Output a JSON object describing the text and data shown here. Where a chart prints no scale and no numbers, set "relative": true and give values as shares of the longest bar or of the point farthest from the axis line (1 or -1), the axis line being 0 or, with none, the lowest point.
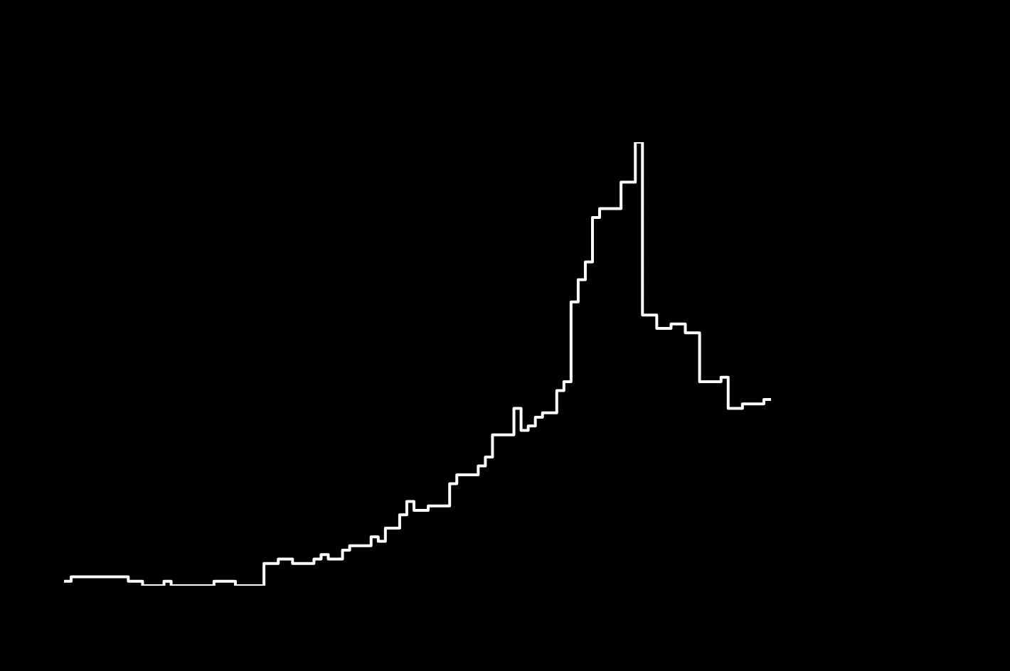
{
  "chart_data": {
    "type": "step",
    "relative": true,
    "color": "#ffffff",
    "categories": [
      null,
      null,
      null,
      null,
      null,
      null,
      null,
      null,
      null,
      null,
      null,
      null,
      null,
      null,
      null,
      null,
      null,
      null,
      null,
      null,
      null,
      null,
      null,
      null,
      null,
      null,
      null,
      null,
      null,
      null,
      null,
      null,
      null,
      null,
      null,
      null,
      null,
      null,
      null,
      null,
      null,
      null,
      null,
      null,
      null,
      null,
      null,
      null,
      null,
      null,
      null,
      null,
      null,
      null,
      null,
      null,
      null,
      null,
      null,
      null,
      null,
      null,
      null,
      null,
      null,
      null,
      null,
      null,
      null,
      null,
      null,
      null,
      null,
      null,
      null,
      null,
      null,
      null,
      null,
      null,
      null,
      null,
      null,
      null,
      null,
      null,
      null,
      null,
      null,
      null,
      null,
      null,
      null,
      null,
      null,
      null,
      null,
      null,
      null,
      null
    ],
    "values": [
      0.01,
      0.02,
      0.02,
      0.02,
      0.02,
      0.02,
      0.02,
      0.02,
      0.02,
      0.01,
      0.01,
      0,
      0,
      0,
      0.01,
      0,
      0,
      0,
      0,
      0,
      0,
      0.01,
      0.01,
      0.01,
      0,
      0,
      0,
      0,
      0.05,
      0.05,
      0.06,
      0.06,
      0.05,
      0.05,
      0.05,
      0.06,
      0.07,
      0.06,
      0.06,
      0.08,
      0.09,
      0.09,
      0.09,
      0.11,
      0.1,
      0.13,
      0.13,
      0.16,
      0.19,
      0.17,
      0.17,
      0.18,
      0.18,
      0.18,
      0.23,
      0.25,
      0.25,
      0.25,
      0.27,
      0.29,
      0.34,
      0.34,
      0.34,
      0.4,
      0.35,
      0.36,
      0.38,
      0.39,
      0.39,
      0.44,
      0.46,
      0.64,
      0.69,
      0.73,
      0.83,
      0.85,
      0.85,
      0.85,
      0.91,
      0.91,
      1,
      0.61,
      0.61,
      0.58,
      0.58,
      0.59,
      0.59,
      0.57,
      0.57,
      0.46,
      0.46,
      0.46,
      0.47,
      0.4,
      0.4,
      0.41,
      0.41,
      0.41,
      0.42,
      0.42
    ]
  }
}
